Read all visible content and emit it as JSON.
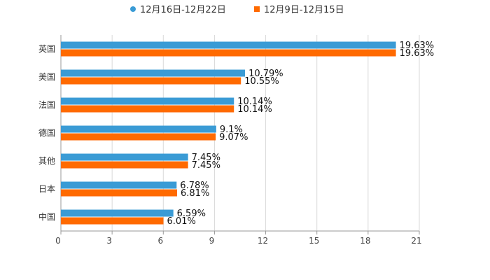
{
  "chart_data": {
    "type": "bar",
    "orientation": "horizontal",
    "categories": [
      "英国",
      "美国",
      "法国",
      "德国",
      "其他",
      "日本",
      "中国"
    ],
    "series": [
      {
        "name": "12月16日-12月22日",
        "color": "#3a9bd5",
        "values": [
          19.63,
          10.79,
          10.14,
          9.1,
          7.45,
          6.78,
          6.59
        ],
        "labels": [
          "19.63%",
          "10.79%",
          "10.14%",
          "9.1%",
          "7.45%",
          "6.78%",
          "6.59%"
        ]
      },
      {
        "name": "12月9日-12月15日",
        "color": "#ff6a00",
        "values": [
          19.63,
          10.55,
          10.14,
          9.07,
          7.45,
          6.81,
          6.01
        ],
        "labels": [
          "19.63%",
          "10.55%",
          "10.14%",
          "9.07%",
          "7.45%",
          "6.81%",
          "6.01%"
        ]
      }
    ],
    "xlim": [
      0,
      21
    ],
    "xticks": [
      0,
      3,
      6,
      9,
      12,
      15,
      18,
      21
    ],
    "grid": true,
    "legend": "top-center",
    "title": "",
    "xlabel": "",
    "ylabel": ""
  }
}
